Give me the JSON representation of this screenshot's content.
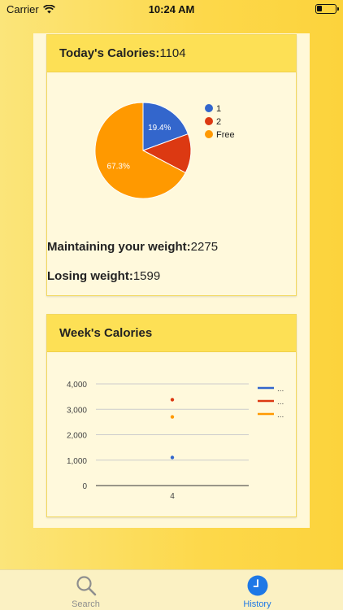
{
  "status_bar": {
    "carrier": "Carrier",
    "time": "10:24 AM"
  },
  "today_card": {
    "title_label": "Today's Calories:",
    "title_value": "1104",
    "maintain_label": "Maintaining your weight:",
    "maintain_value": "2275",
    "losing_label": "Losing weight:",
    "losing_value": "1599"
  },
  "week_card": {
    "title": "Week's Calories"
  },
  "tabs": {
    "search_label": "Search",
    "history_label": "History"
  },
  "colors": {
    "blue": "#3366cc",
    "red": "#dc3912",
    "orange": "#ff9900",
    "accent": "#1e78e6"
  },
  "chart_data": [
    {
      "type": "pie",
      "slices": [
        {
          "name": "1",
          "percent": 19.4,
          "label": "19.4%",
          "color": "#3366cc"
        },
        {
          "name": "2",
          "percent": 13.3,
          "label": "",
          "color": "#dc3912"
        },
        {
          "name": "Free",
          "percent": 67.3,
          "label": "67.3%",
          "color": "#ff9900"
        }
      ],
      "legend": [
        "1",
        "2",
        "Free"
      ],
      "legend_position": "right"
    },
    {
      "type": "scatter",
      "categories": [
        "4"
      ],
      "series": [
        {
          "legend": "...",
          "color": "#3366cc",
          "values": [
            1104
          ]
        },
        {
          "legend": "...",
          "color": "#dc3912",
          "values": [
            3379
          ]
        },
        {
          "legend": "...",
          "color": "#ff9900",
          "values": [
            2703
          ]
        }
      ],
      "ylim": [
        0,
        4000
      ],
      "yticks": [
        "0",
        "1,000",
        "2,000",
        "3,000",
        "4,000"
      ],
      "grid": true,
      "legend_position": "right"
    }
  ]
}
